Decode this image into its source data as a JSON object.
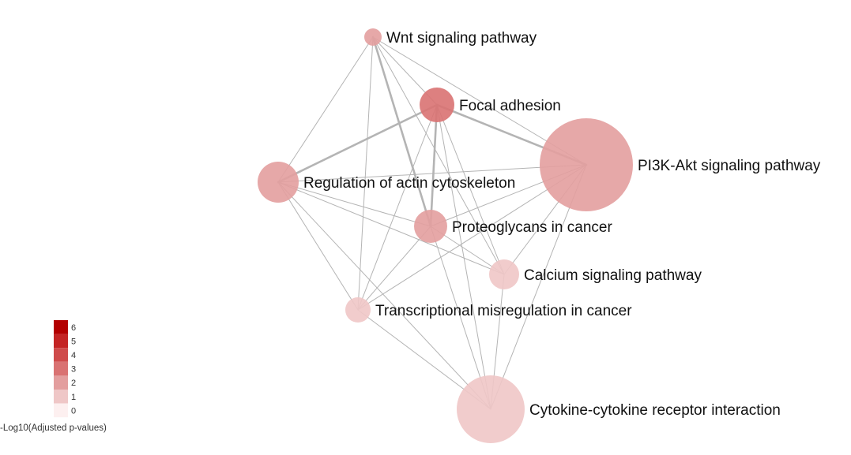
{
  "chart_data": {
    "type": "network",
    "nodes": [
      {
        "id": "wnt",
        "label": "Wnt signaling pathway",
        "color_value": 2
      },
      {
        "id": "focal",
        "label": "Focal adhesion",
        "color_value": 3
      },
      {
        "id": "pi3k",
        "label": "PI3K-Akt signaling pathway",
        "color_value": 2
      },
      {
        "id": "actin",
        "label": "Regulation of actin cytoskeleton",
        "color_value": 2
      },
      {
        "id": "proteo",
        "label": "Proteoglycans in cancer",
        "color_value": 2
      },
      {
        "id": "calcium",
        "label": "Calcium signaling pathway",
        "color_value": 1
      },
      {
        "id": "transcr",
        "label": "Transcriptional misregulation in cancer",
        "color_value": 1
      },
      {
        "id": "cytokine",
        "label": "Cytokine-cytokine receptor interaction",
        "color_value": 1
      }
    ],
    "edges": [
      {
        "source": "wnt",
        "target": "focal",
        "strength": 1
      },
      {
        "source": "wnt",
        "target": "pi3k",
        "strength": 1
      },
      {
        "source": "wnt",
        "target": "actin",
        "strength": 1
      },
      {
        "source": "wnt",
        "target": "proteo",
        "strength": 2
      },
      {
        "source": "wnt",
        "target": "calcium",
        "strength": 1
      },
      {
        "source": "wnt",
        "target": "transcr",
        "strength": 1
      },
      {
        "source": "focal",
        "target": "pi3k",
        "strength": 2
      },
      {
        "source": "focal",
        "target": "actin",
        "strength": 2
      },
      {
        "source": "focal",
        "target": "proteo",
        "strength": 2
      },
      {
        "source": "focal",
        "target": "calcium",
        "strength": 1
      },
      {
        "source": "focal",
        "target": "transcr",
        "strength": 1
      },
      {
        "source": "focal",
        "target": "cytokine",
        "strength": 1
      },
      {
        "source": "pi3k",
        "target": "actin",
        "strength": 1
      },
      {
        "source": "pi3k",
        "target": "proteo",
        "strength": 1
      },
      {
        "source": "pi3k",
        "target": "calcium",
        "strength": 1
      },
      {
        "source": "pi3k",
        "target": "transcr",
        "strength": 1
      },
      {
        "source": "pi3k",
        "target": "cytokine",
        "strength": 1
      },
      {
        "source": "actin",
        "target": "proteo",
        "strength": 1
      },
      {
        "source": "actin",
        "target": "calcium",
        "strength": 1
      },
      {
        "source": "actin",
        "target": "transcr",
        "strength": 1
      },
      {
        "source": "actin",
        "target": "cytokine",
        "strength": 1
      },
      {
        "source": "proteo",
        "target": "calcium",
        "strength": 1
      },
      {
        "source": "proteo",
        "target": "transcr",
        "strength": 1
      },
      {
        "source": "proteo",
        "target": "cytokine",
        "strength": 1
      },
      {
        "source": "calcium",
        "target": "cytokine",
        "strength": 1
      },
      {
        "source": "transcr",
        "target": "cytokine",
        "strength": 1
      }
    ],
    "legend": {
      "title": "-Log10(Adjusted p-values)",
      "levels": [
        {
          "value": "6",
          "color": "#b30000"
        },
        {
          "value": "5",
          "color": "#c42424"
        },
        {
          "value": "4",
          "color": "#cf4b4b"
        },
        {
          "value": "3",
          "color": "#d97272"
        },
        {
          "value": "2",
          "color": "#e39e9e"
        },
        {
          "value": "1",
          "color": "#efc7c7"
        },
        {
          "value": "0",
          "color": "#fdf0f0"
        }
      ]
    }
  }
}
